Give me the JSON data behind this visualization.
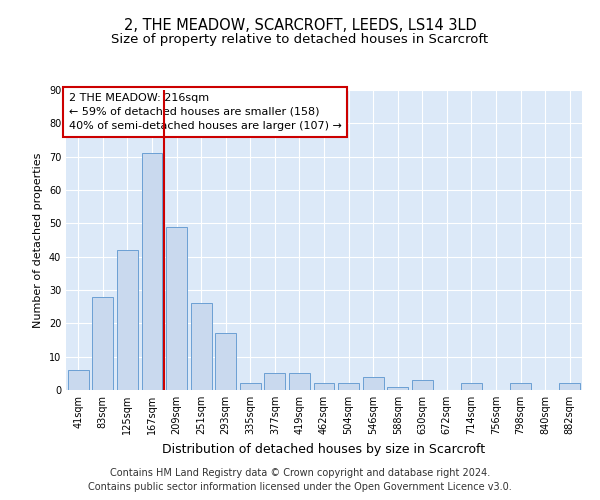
{
  "title": "2, THE MEADOW, SCARCROFT, LEEDS, LS14 3LD",
  "subtitle": "Size of property relative to detached houses in Scarcroft",
  "xlabel": "Distribution of detached houses by size in Scarcroft",
  "ylabel": "Number of detached properties",
  "categories": [
    "41sqm",
    "83sqm",
    "125sqm",
    "167sqm",
    "209sqm",
    "251sqm",
    "293sqm",
    "335sqm",
    "377sqm",
    "419sqm",
    "462sqm",
    "504sqm",
    "546sqm",
    "588sqm",
    "630sqm",
    "672sqm",
    "714sqm",
    "756sqm",
    "798sqm",
    "840sqm",
    "882sqm"
  ],
  "values": [
    6,
    28,
    42,
    71,
    49,
    26,
    17,
    2,
    5,
    5,
    2,
    2,
    4,
    1,
    3,
    0,
    2,
    0,
    2,
    0,
    2
  ],
  "bar_color": "#c9d9ee",
  "bar_edge_color": "#6b9fd4",
  "vline_color": "#cc0000",
  "vline_x_index": 4,
  "ylim": [
    0,
    90
  ],
  "yticks": [
    0,
    10,
    20,
    30,
    40,
    50,
    60,
    70,
    80,
    90
  ],
  "annotation_text": "2 THE MEADOW: 216sqm\n← 59% of detached houses are smaller (158)\n40% of semi-detached houses are larger (107) →",
  "annotation_box_facecolor": "#ffffff",
  "annotation_box_edgecolor": "#cc0000",
  "footer_line1": "Contains HM Land Registry data © Crown copyright and database right 2024.",
  "footer_line2": "Contains public sector information licensed under the Open Government Licence v3.0.",
  "fig_facecolor": "#ffffff",
  "plot_bg_color": "#dce9f8",
  "grid_color": "#ffffff",
  "title_fontsize": 10.5,
  "subtitle_fontsize": 9.5,
  "tick_fontsize": 7,
  "ylabel_fontsize": 8,
  "xlabel_fontsize": 9,
  "footer_fontsize": 7,
  "annotation_fontsize": 8
}
